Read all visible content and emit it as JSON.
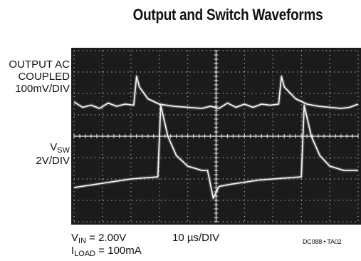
{
  "title": "Output and Switch Waveforms",
  "channel_labels": {
    "output": {
      "line1": "OUTPUT AC",
      "line2": "COUPLED",
      "line3": "100mV/DIV"
    },
    "switch": {
      "main": "V",
      "sub": "SW",
      "scale": "2V/DIV"
    }
  },
  "footer": {
    "vin": {
      "main": "V",
      "sub": "IN",
      "rest": " = 2.00V"
    },
    "iload": {
      "main": "I",
      "sub": "LOAD",
      "rest": " = 100mA"
    },
    "time_div": "10 µs/DIV",
    "code": "DC088 • TA02"
  },
  "colors": {
    "screen": "#1b1b1b",
    "trace": "#f2f2f2",
    "graticule": "#cfcfcf"
  },
  "chart_data": {
    "type": "line",
    "title": "Output and Switch Waveforms",
    "xlabel": "10 µs/DIV",
    "ylabel": "",
    "grid": true,
    "x_unit": "µs",
    "xlim": [
      0,
      100
    ],
    "ylim": [
      -4,
      4
    ],
    "series": [
      {
        "name": "OUTPUT AC COUPLED 100mV/DIV",
        "x": [
          0,
          3,
          6,
          9,
          12,
          15,
          18,
          21,
          22,
          23,
          26,
          30,
          35,
          40,
          45,
          48,
          51,
          54,
          57,
          60,
          63,
          66,
          69,
          72,
          73,
          74,
          78,
          82,
          86,
          90,
          94,
          97,
          100
        ],
        "y": [
          1.6,
          1.35,
          1.45,
          1.3,
          1.55,
          1.4,
          1.5,
          1.45,
          2.8,
          2.3,
          1.75,
          1.5,
          1.4,
          1.35,
          1.3,
          1.4,
          1.3,
          1.55,
          1.35,
          1.5,
          1.35,
          1.5,
          1.45,
          1.5,
          2.8,
          2.3,
          1.75,
          1.5,
          1.4,
          1.35,
          1.3,
          1.35,
          1.5
        ]
      },
      {
        "name": "VSW 2V/DIV",
        "x": [
          0,
          5,
          10,
          15,
          20,
          29.5,
          30.5,
          33,
          36,
          40,
          45,
          47,
          49,
          51,
          55,
          60,
          65,
          70,
          75,
          80,
          81,
          83.5,
          86.5,
          90,
          95,
          100
        ],
        "y": [
          -2.4,
          -2.3,
          -2.2,
          -2.1,
          -2.0,
          -1.9,
          1.45,
          0.0,
          -0.9,
          -1.4,
          -1.6,
          -1.6,
          -2.9,
          -2.35,
          -2.25,
          -2.15,
          -2.05,
          -2.0,
          -1.95,
          -1.9,
          1.45,
          0.0,
          -0.9,
          -1.4,
          -1.6,
          -1.6
        ]
      }
    ]
  }
}
